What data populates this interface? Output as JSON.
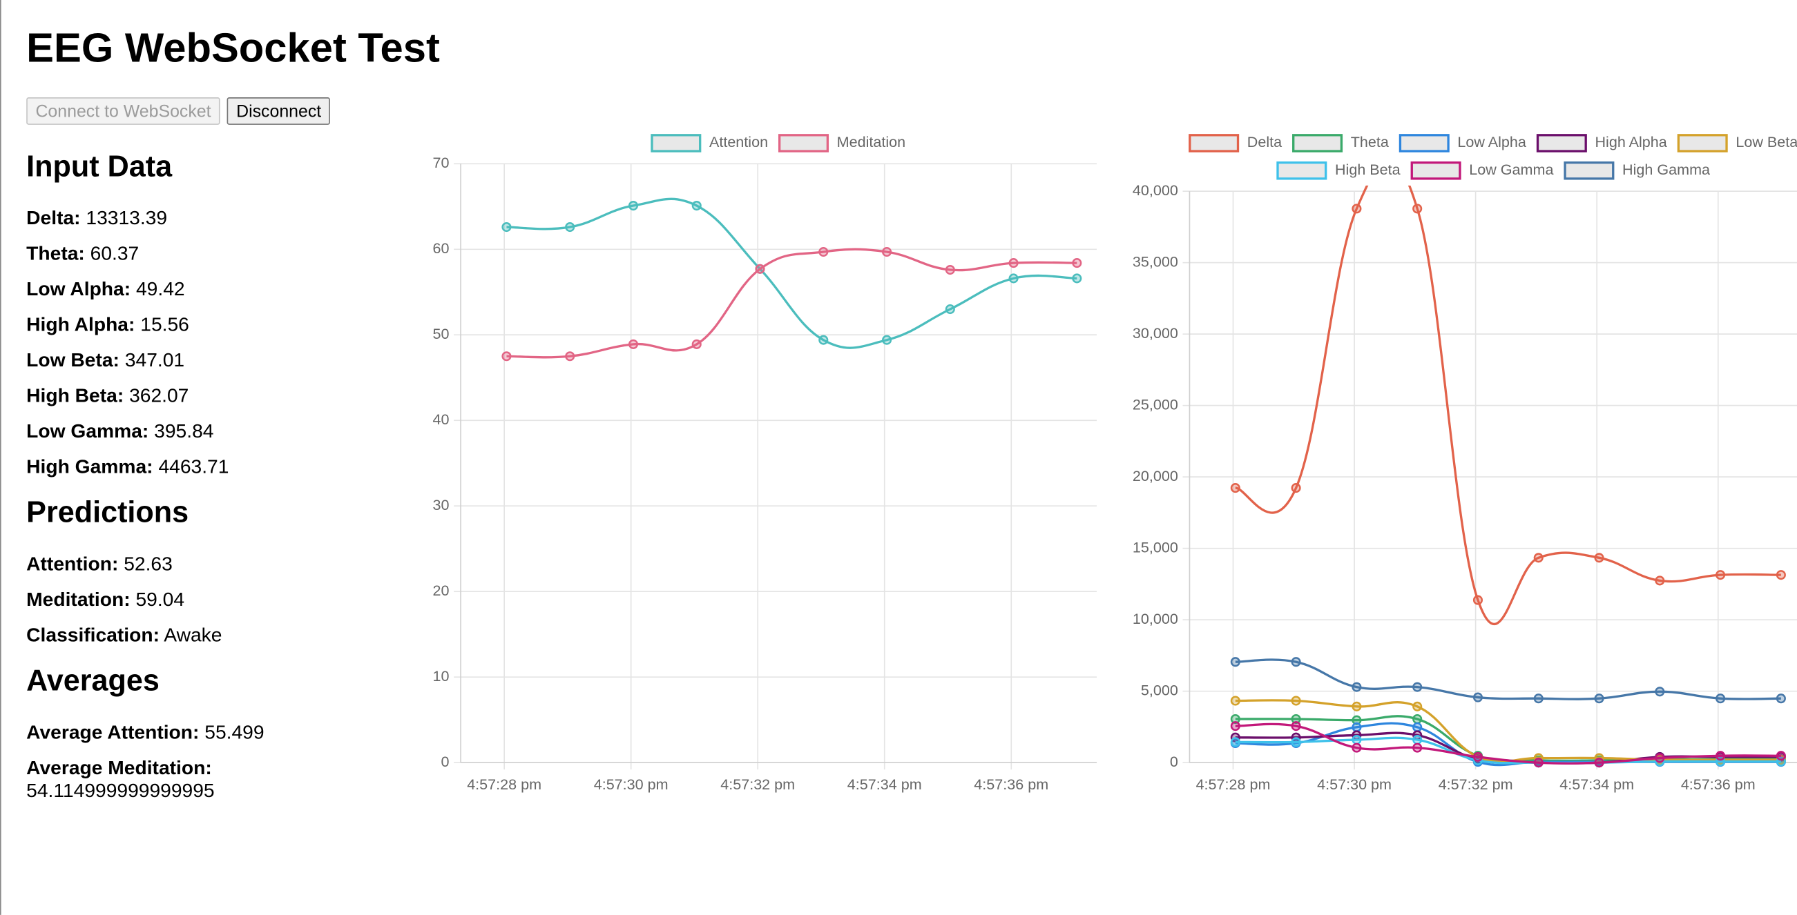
{
  "title": "EEG WebSocket Test",
  "buttons": [
    "Connect to WebSocket",
    "Disconnect"
  ],
  "input_data": {
    "heading": "Input Data",
    "items": [
      {
        "label": "Delta:",
        "value": 13313.39
      },
      {
        "label": "Theta:",
        "value": 60.37
      },
      {
        "label": "Low Alpha:",
        "value": 49.42
      },
      {
        "label": "High Alpha:",
        "value": 15.56
      },
      {
        "label": "Low Beta:",
        "value": 347.01
      },
      {
        "label": "High Beta:",
        "value": 362.07
      },
      {
        "label": "Low Gamma:",
        "value": 395.84
      },
      {
        "label": "High Gamma:",
        "value": 4463.71
      }
    ]
  },
  "predictions": {
    "heading": "Predictions",
    "items": [
      {
        "label": "Attention:",
        "value": 52.63
      },
      {
        "label": "Meditation:",
        "value": 59.04
      },
      {
        "label": "Classification:",
        "value": "Awake"
      }
    ]
  },
  "averages": {
    "heading": "Averages",
    "items": [
      {
        "label": "Average Attention:",
        "value": 55.499
      },
      {
        "label": "Average Meditation:",
        "value": 54.114999999999995
      }
    ]
  },
  "chart_data": [
    {
      "type": "line",
      "categories": [
        "4:57:28 pm",
        null,
        "4:57:30 pm",
        null,
        "4:57:32 pm",
        null,
        "4:57:34 pm",
        null,
        "4:57:36 pm",
        null
      ],
      "series": [
        {
          "name": "Attention",
          "color": "#4bbdbd",
          "values": [
            62.6,
            62.6,
            65.1,
            65.1,
            57.7,
            49.4,
            49.4,
            53.0,
            56.6,
            56.6
          ]
        },
        {
          "name": "Meditation",
          "color": "#e26585",
          "values": [
            47.5,
            47.5,
            48.9,
            48.9,
            57.7,
            59.7,
            59.7,
            57.6,
            58.4,
            58.4
          ]
        }
      ],
      "ylim": [
        0,
        70
      ],
      "yticks": [
        0,
        10,
        20,
        30,
        40,
        50,
        60,
        70
      ],
      "grid": true,
      "legend": "top"
    },
    {
      "type": "line",
      "categories": [
        "4:57:28 pm",
        null,
        "4:57:30 pm",
        null,
        "4:57:32 pm",
        null,
        "4:57:34 pm",
        null,
        "4:57:36 pm",
        null
      ],
      "series": [
        {
          "name": "Delta",
          "color": "#e2624a",
          "values": [
            19230,
            19230,
            38780,
            38780,
            11380,
            14340,
            14340,
            12740,
            13140,
            13140
          ]
        },
        {
          "name": "Theta",
          "color": "#3aaa6a",
          "values": [
            3050,
            3050,
            2970,
            3050,
            480,
            160,
            160,
            240,
            240,
            240
          ]
        },
        {
          "name": "Low Alpha",
          "color": "#2e86de",
          "values": [
            1360,
            1360,
            2480,
            2480,
            50,
            50,
            50,
            50,
            50,
            50
          ]
        },
        {
          "name": "High Alpha",
          "color": "#6b0f6b",
          "values": [
            1760,
            1760,
            1920,
            1920,
            240,
            0,
            0,
            400,
            400,
            400
          ]
        },
        {
          "name": "Low Beta",
          "color": "#d4a22b",
          "values": [
            4330,
            4330,
            3930,
            3930,
            400,
            320,
            320,
            200,
            200,
            200
          ]
        },
        {
          "name": "High Beta",
          "color": "#3ec1ea",
          "values": [
            1440,
            1440,
            1600,
            1600,
            160,
            0,
            0,
            80,
            80,
            80
          ]
        },
        {
          "name": "Low Gamma",
          "color": "#c2187a",
          "values": [
            2560,
            2560,
            1040,
            1040,
            400,
            0,
            0,
            320,
            480,
            480
          ]
        },
        {
          "name": "High Gamma",
          "color": "#4677a8",
          "values": [
            7050,
            7050,
            5290,
            5290,
            4570,
            4490,
            4490,
            4970,
            4490,
            4490
          ]
        }
      ],
      "ylim": [
        0,
        40000
      ],
      "yticks": [
        0,
        {
          "value": 5000,
          "label": "5,000"
        },
        {
          "value": 10000,
          "label": "10,000"
        },
        {
          "value": 15000,
          "label": "15,000"
        },
        {
          "value": 20000,
          "label": "20,000"
        },
        {
          "value": 25000,
          "label": "25,000"
        },
        {
          "value": 30000,
          "label": "30,000"
        },
        {
          "value": 35000,
          "label": "35,000"
        },
        {
          "value": 40000,
          "label": "40,000"
        }
      ],
      "grid": true,
      "legend": "top"
    }
  ]
}
